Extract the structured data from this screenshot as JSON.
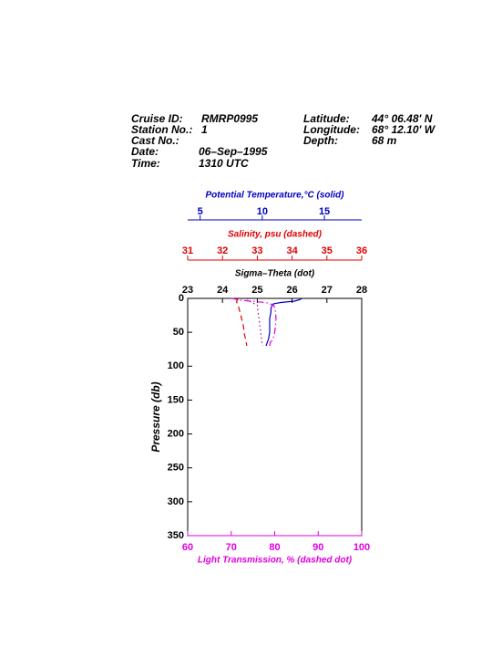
{
  "header": {
    "left": [
      [
        "Cruise ID:",
        "RMRP0995"
      ],
      [
        "Station No.:",
        "1"
      ],
      [
        "Cast No.:",
        ""
      ],
      [
        "Date:",
        "06–Sep–1995"
      ],
      [
        "Time:",
        "1310 UTC"
      ]
    ],
    "right": [
      [
        "Latitude:",
        "44° 06.48' N"
      ],
      [
        "Longitude:",
        "68° 12.10' W"
      ],
      [
        "Depth:",
        "68 m"
      ]
    ]
  },
  "chart_data": {
    "type": "line",
    "ylabel": "Pressure (db)",
    "ylim": [
      0,
      350
    ],
    "yticks": [
      0,
      50,
      100,
      150,
      200,
      250,
      300,
      350
    ],
    "series": [
      {
        "name": "Potential Temperature,°C (solid)",
        "color": "#0000c0",
        "dash": "solid",
        "xlim": [
          4,
          18
        ],
        "xticks": [
          5,
          10,
          15
        ],
        "pressure": [
          0,
          2,
          4,
          6,
          8,
          10,
          15,
          20,
          30,
          40,
          50,
          60,
          65,
          70
        ],
        "values": [
          13.2,
          13.0,
          12.6,
          11.5,
          10.9,
          10.8,
          10.7,
          10.7,
          10.6,
          10.6,
          10.6,
          10.5,
          10.4,
          10.3
        ]
      },
      {
        "name": "Salinity, psu  (dashed)",
        "color": "#e00000",
        "dash": "dashed",
        "xlim": [
          31,
          36
        ],
        "xticks": [
          31,
          32,
          33,
          34,
          35,
          36
        ],
        "pressure": [
          0,
          5,
          10,
          20,
          30,
          40,
          50,
          60,
          70
        ],
        "values": [
          32.45,
          32.4,
          32.45,
          32.5,
          32.55,
          32.6,
          32.62,
          32.66,
          32.7
        ]
      },
      {
        "name": "Sigma–Theta (dot)",
        "color": "#a000a0",
        "dash": "dot",
        "xlim": [
          23,
          28
        ],
        "xticks": [
          23,
          24,
          25,
          26,
          27,
          28
        ],
        "pressure": [
          0,
          5,
          10,
          20,
          30,
          40,
          50,
          60,
          70
        ],
        "values": [
          24.7,
          24.8,
          25.0,
          25.02,
          25.05,
          25.07,
          25.1,
          25.12,
          25.15
        ]
      },
      {
        "name": "Light Transmission, % (dashed dot)",
        "color": "#e000e0",
        "dash": "dashdot",
        "xlim": [
          60,
          100
        ],
        "xticks": [
          60,
          70,
          80,
          90,
          100
        ],
        "pressure": [
          0,
          3,
          6,
          10,
          20,
          30,
          40,
          50,
          60,
          65,
          70
        ],
        "values": [
          70.0,
          72.5,
          78.0,
          79.8,
          80.2,
          80.3,
          80.2,
          80.0,
          79.6,
          79.0,
          78.8
        ]
      }
    ]
  }
}
